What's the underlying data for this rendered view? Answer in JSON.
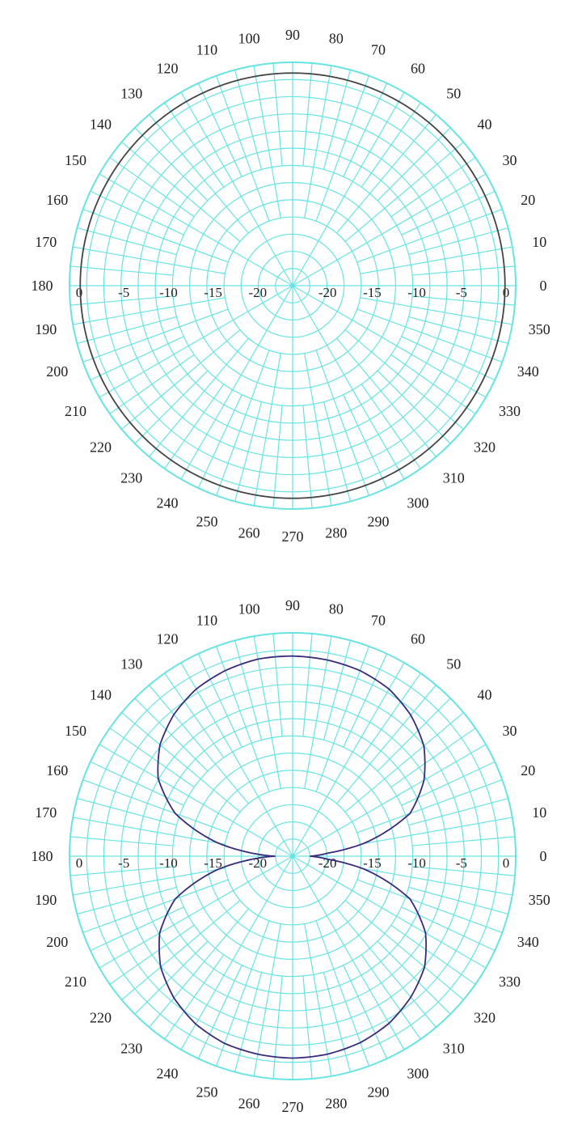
{
  "chart_data": [
    {
      "type": "polar-line",
      "angle_unit": "degrees",
      "angle_tick_labels": [
        "0",
        "10",
        "20",
        "30",
        "40",
        "50",
        "60",
        "70",
        "80",
        "90",
        "100",
        "110",
        "120",
        "130",
        "140",
        "150",
        "160",
        "170",
        "180",
        "190",
        "200",
        "210",
        "220",
        "230",
        "240",
        "250",
        "260",
        "270",
        "280",
        "290",
        "300",
        "310",
        "320",
        "330",
        "340",
        "350"
      ],
      "radial_tick_labels": [
        "0",
        "-5",
        "-10",
        "-15",
        "-20"
      ],
      "r_range_db": [
        -25,
        0
      ],
      "grid": true,
      "grid_color": "#67e3e3",
      "line_color": "#444444",
      "pattern": "omnidirectional",
      "series": [
        {
          "theta": [
            0,
            30,
            60,
            90,
            120,
            150,
            180,
            210,
            240,
            270,
            300,
            330,
            360
          ],
          "r_db": [
            -1.2,
            -1.2,
            -1.2,
            -1.2,
            -1.2,
            -1.2,
            -1.2,
            -1.2,
            -1.2,
            -1.2,
            -1.2,
            -1.2,
            -1.2
          ]
        }
      ]
    },
    {
      "type": "polar-line",
      "angle_unit": "degrees",
      "angle_tick_labels": [
        "0",
        "10",
        "20",
        "30",
        "40",
        "50",
        "60",
        "70",
        "80",
        "90",
        "100",
        "110",
        "120",
        "130",
        "140",
        "150",
        "160",
        "170",
        "180",
        "190",
        "200",
        "210",
        "220",
        "230",
        "240",
        "250",
        "260",
        "270",
        "280",
        "290",
        "300",
        "310",
        "320",
        "330",
        "340",
        "350"
      ],
      "radial_tick_labels": [
        "0",
        "-5",
        "-10",
        "-15",
        "-20"
      ],
      "r_range_db": [
        -25,
        0
      ],
      "grid": true,
      "grid_color": "#67e3e3",
      "line_color": "#3a2a7a",
      "pattern": "figure-eight",
      "series": [
        {
          "theta": [
            0,
            5,
            10,
            20,
            30,
            40,
            50,
            60,
            70,
            80,
            90,
            100,
            110,
            120,
            130,
            140,
            150,
            160,
            170,
            175,
            180,
            185,
            190,
            200,
            210,
            220,
            230,
            240,
            250,
            260,
            270,
            280,
            290,
            300,
            310,
            320,
            330,
            340,
            350,
            355,
            360
          ],
          "r_db": [
            -23,
            -21,
            -17,
            -11,
            -8,
            -5.8,
            -4.4,
            -3.4,
            -2.9,
            -2.7,
            -2.6,
            -2.6,
            -2.9,
            -3.4,
            -4.3,
            -5.6,
            -7.6,
            -11,
            -16.5,
            -20,
            -23,
            -20,
            -16.5,
            -11,
            -7.8,
            -5.7,
            -4.3,
            -3.3,
            -2.7,
            -2.5,
            -2.4,
            -2.5,
            -2.8,
            -3.4,
            -4.4,
            -5.7,
            -7.8,
            -11,
            -17,
            -21,
            -23
          ]
        }
      ]
    }
  ]
}
